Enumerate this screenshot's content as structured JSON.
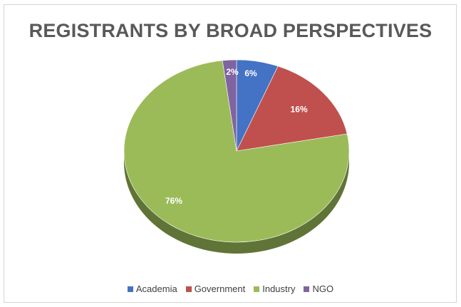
{
  "chart_data": {
    "type": "pie",
    "title": "REGISTRANTS BY BROAD PERSPECTIVES",
    "categories": [
      "Academia",
      "Government",
      "Industry",
      "NGO"
    ],
    "values": [
      6,
      16,
      76,
      2
    ],
    "labels": [
      "6%",
      "16%",
      "76%",
      "2%"
    ],
    "colors": [
      "#4472c4",
      "#c0504d",
      "#9bbb59",
      "#8064a2"
    ],
    "legend_position": "bottom",
    "style": "3d"
  }
}
